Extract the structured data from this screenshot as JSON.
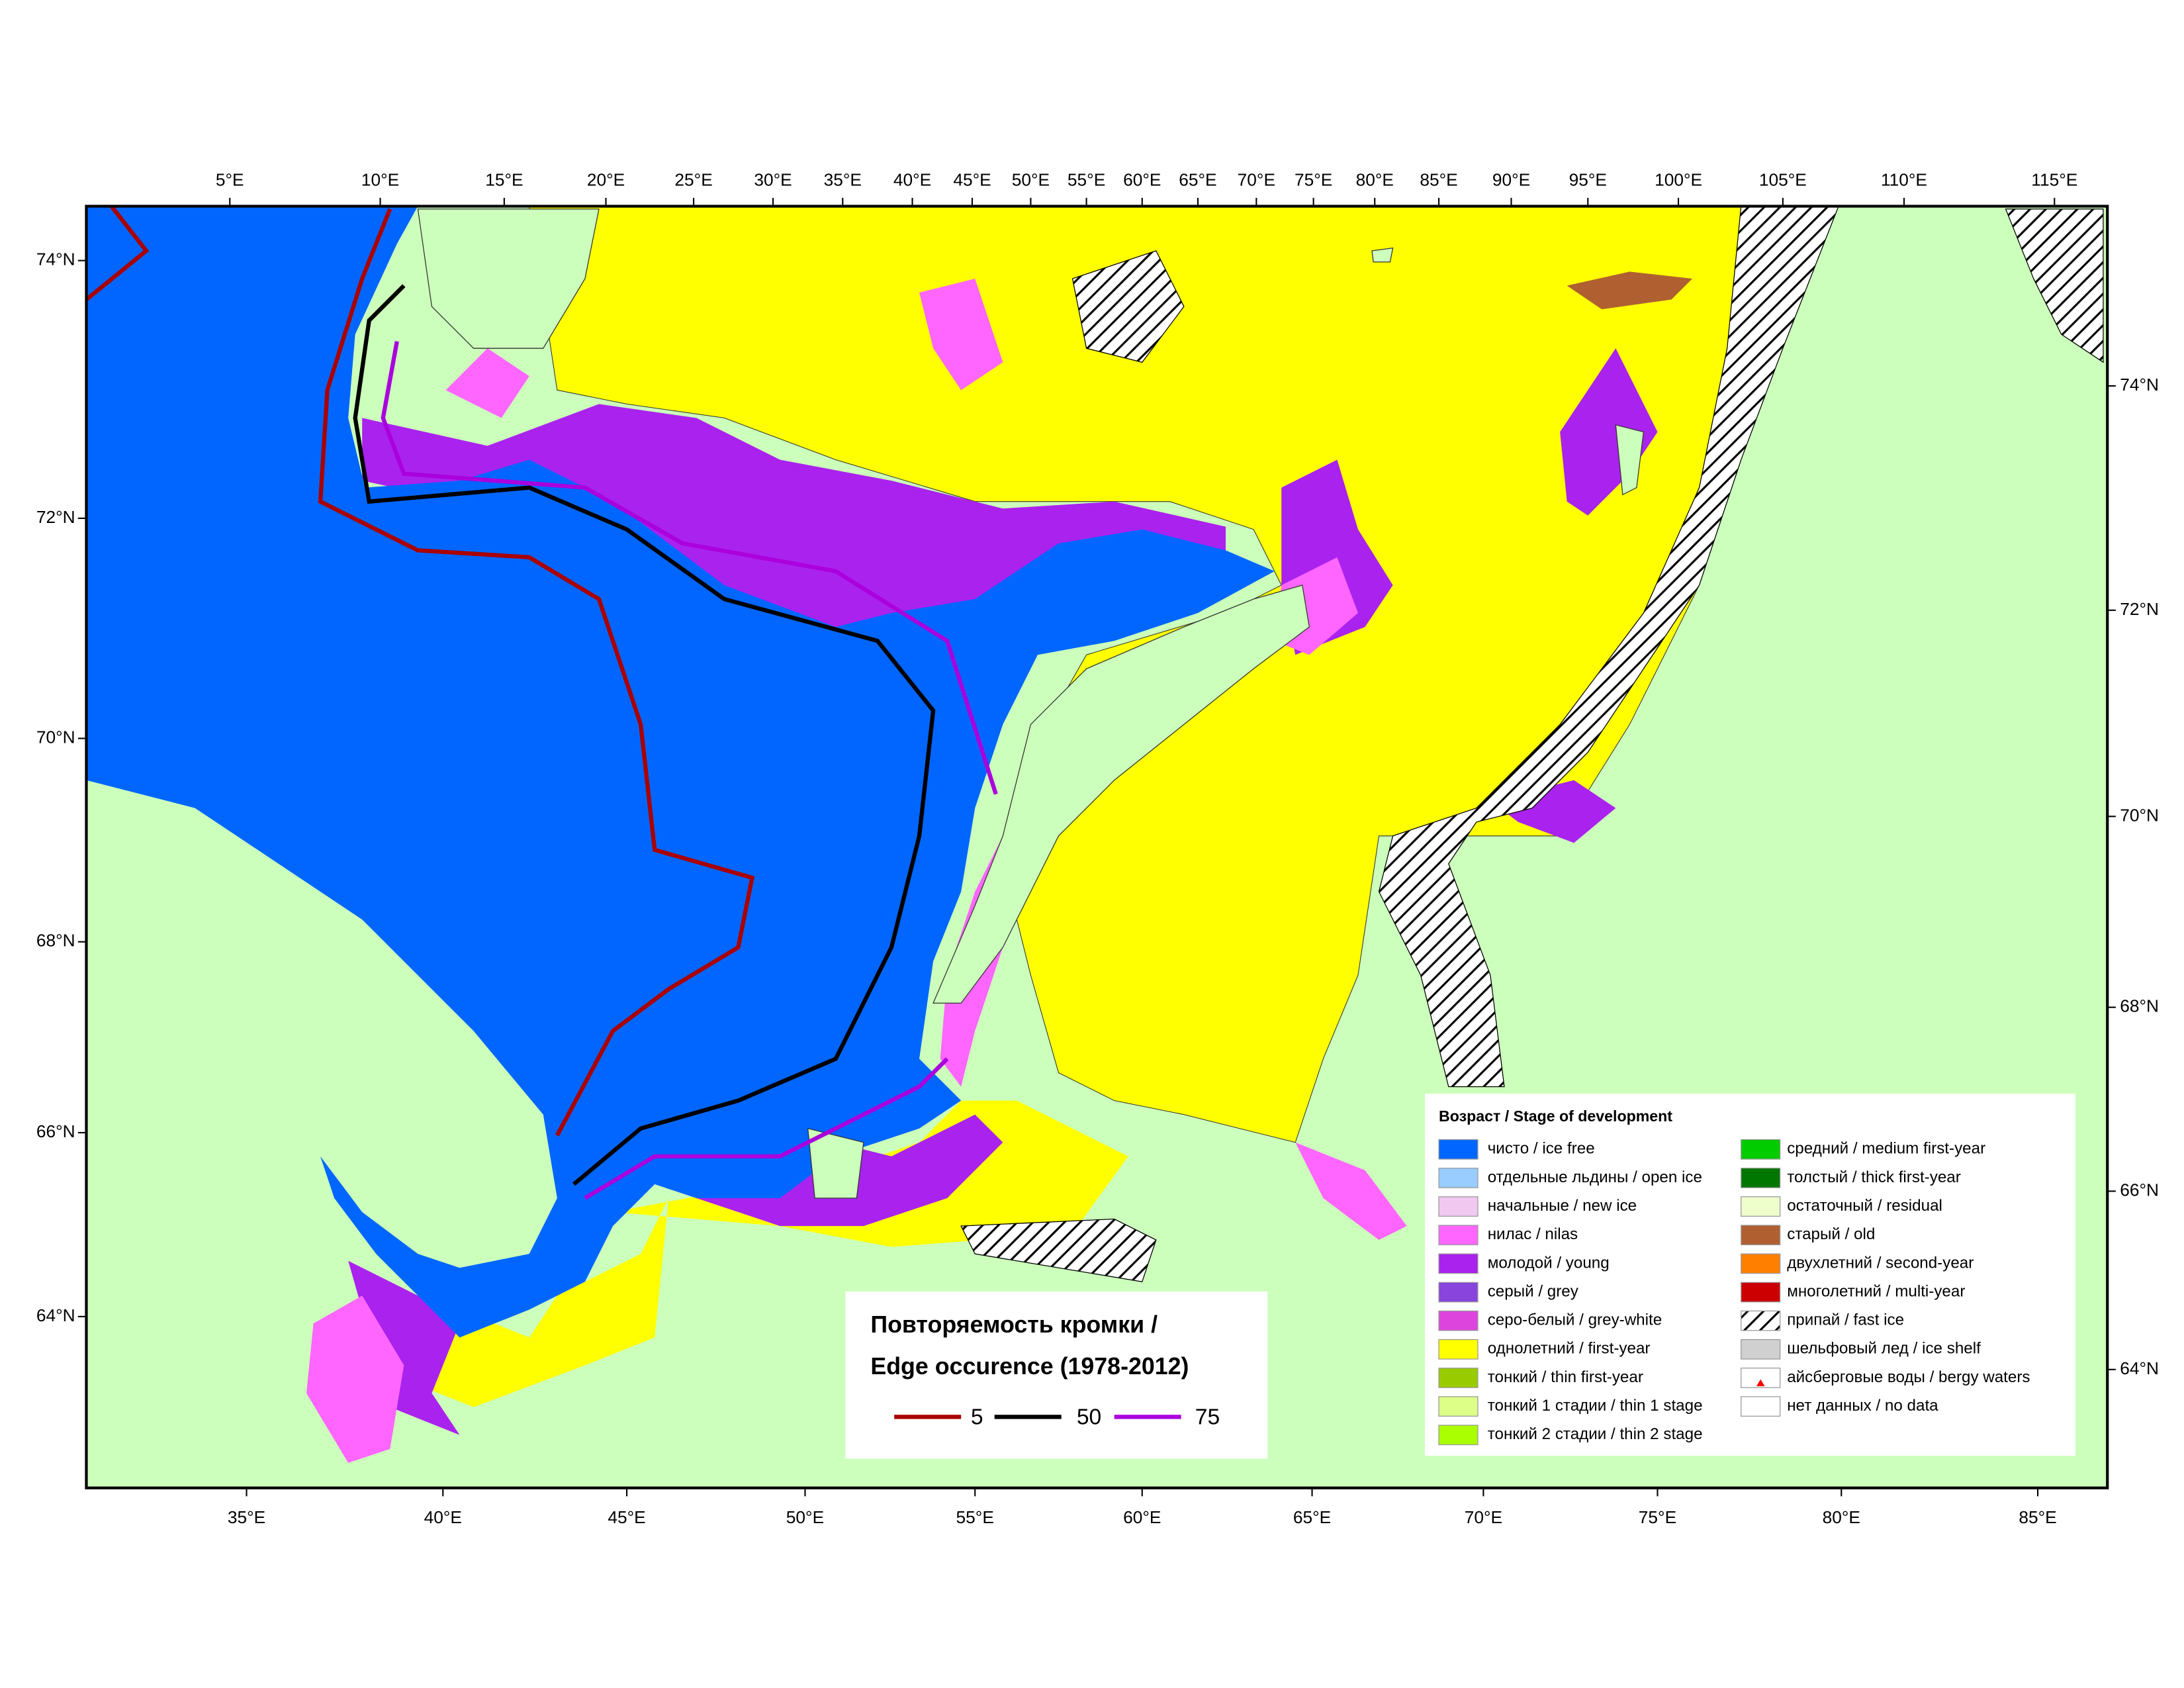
{
  "map": {
    "top_labels": [
      "5°E",
      "10°E",
      "15°E",
      "20°E",
      "25°E",
      "30°E",
      "35°E",
      "40°E",
      "45°E",
      "50°E",
      "55°E",
      "60°E",
      "65°E",
      "70°E",
      "75°E",
      "80°E",
      "85°E",
      "90°E",
      "95°E",
      "100°E",
      "105°E",
      "110°E",
      "115°E"
    ],
    "bottom_labels": [
      "35°E",
      "40°E",
      "45°E",
      "50°E",
      "55°E",
      "60°E",
      "65°E",
      "70°E",
      "75°E",
      "80°E",
      "85°E"
    ],
    "left_labels": [
      "74°N",
      "72°N",
      "70°N",
      "68°N",
      "66°N",
      "64°N"
    ],
    "right_labels": [
      "74°N",
      "72°N",
      "70°N",
      "68°N",
      "66°N",
      "64°N"
    ]
  },
  "legend": {
    "title": "Возраст / Stage of development",
    "columns": [
      [
        {
          "label": "чисто / ice free",
          "color": "#0066ff"
        },
        {
          "label": "отдельные льдины / open ice",
          "color": "#99ccff"
        },
        {
          "label": "начальные / new ice",
          "color": "#f0c8f0"
        },
        {
          "label": "нилас / nilas",
          "color": "#ff66ff"
        },
        {
          "label": "молодой / young",
          "color": "#aa22ee"
        },
        {
          "label": "серый / grey",
          "color": "#8844dd"
        },
        {
          "label": "серо-белый / grey-white",
          "color": "#dd44dd"
        },
        {
          "label": "однолетний / first-year",
          "color": "#ffff00"
        },
        {
          "label": "тонкий / thin first-year",
          "color": "#99cc00"
        },
        {
          "label": "тонкий 1 стадии / thin 1 stage",
          "color": "#ddff88"
        },
        {
          "label": "тонкий 2 стадии / thin 2 stage",
          "color": "#aaff00"
        }
      ],
      [
        {
          "label": "средний / medium first-year",
          "color": "#00cc00"
        },
        {
          "label": "толстый / thick first-year",
          "color": "#007700"
        },
        {
          "label": "остаточный / residual",
          "color": "#eeffcc"
        },
        {
          "label": "старый / old",
          "color": "#b06030"
        },
        {
          "label": "двухлетний / second-year",
          "color": "#ff8000"
        },
        {
          "label": "многолетний / multi-year",
          "color": "#cc0000"
        },
        {
          "label": "припай / fast ice",
          "color": "#ffffff",
          "pattern": "hatch"
        },
        {
          "label": "шельфовый лед / ice shelf",
          "color": "#d0d0d0"
        },
        {
          "label": "айсберговые воды / bergy waters",
          "color": "#ffffff",
          "symbol": "triangle"
        },
        {
          "label": "нет данных / no data",
          "color": "#ffffff"
        }
      ]
    ]
  },
  "edge_legend": {
    "title_lines": [
      "Повторяемость кромки /",
      "Edge occurence (1978-2012)"
    ],
    "items": [
      {
        "label": "5",
        "color": "#aa0000"
      },
      {
        "label": "50",
        "color": "#000000"
      },
      {
        "label": "75",
        "color": "#aa00dd"
      }
    ]
  }
}
